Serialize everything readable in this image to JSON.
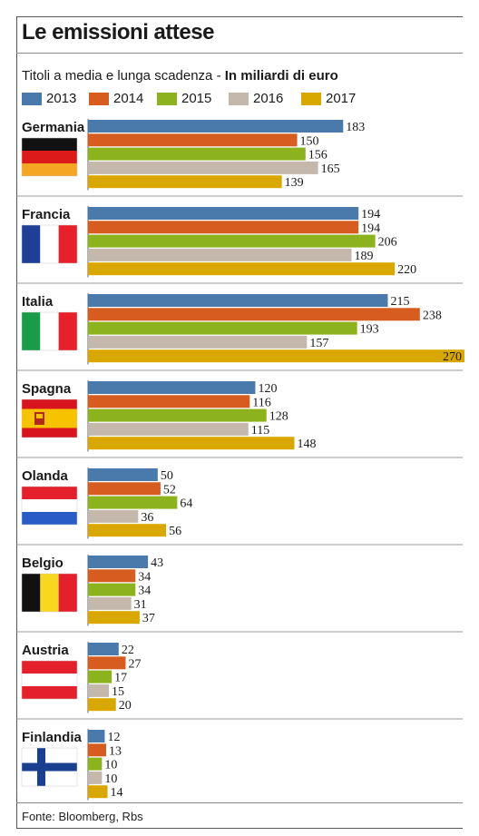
{
  "chart_data": {
    "type": "bar",
    "orientation": "horizontal",
    "title": "Le emissioni attese",
    "subtitle_prefix": "Titoli a media e lunga scadenza - ",
    "subtitle_unit": "In miliardi di euro",
    "source": "Fonte: Bloomberg, Rbs",
    "categories": [
      "Germania",
      "Francia",
      "Italia",
      "Spagna",
      "Olanda",
      "Belgio",
      "Austria",
      "Finlandia"
    ],
    "series": [
      {
        "name": "2013",
        "color": "#4a7aac",
        "values": [
          183,
          194,
          215,
          120,
          50,
          43,
          22,
          12
        ]
      },
      {
        "name": "2014",
        "color": "#d65c20",
        "values": [
          150,
          194,
          238,
          116,
          52,
          34,
          27,
          13
        ]
      },
      {
        "name": "2015",
        "color": "#8cb21e",
        "values": [
          156,
          206,
          193,
          128,
          64,
          34,
          17,
          10
        ]
      },
      {
        "name": "2016",
        "color": "#c4b8ac",
        "values": [
          165,
          189,
          157,
          115,
          36,
          31,
          15,
          10
        ]
      },
      {
        "name": "2017",
        "color": "#d8a800",
        "values": [
          139,
          220,
          270,
          148,
          56,
          37,
          20,
          14
        ]
      }
    ],
    "xlim": [
      0,
      270
    ],
    "grid": false,
    "legend_position": "top-left",
    "flags": [
      "germany-flag",
      "france-flag",
      "italy-flag",
      "spain-flag",
      "netherlands-flag",
      "belgium-flag",
      "austria-flag",
      "finland-flag"
    ]
  }
}
